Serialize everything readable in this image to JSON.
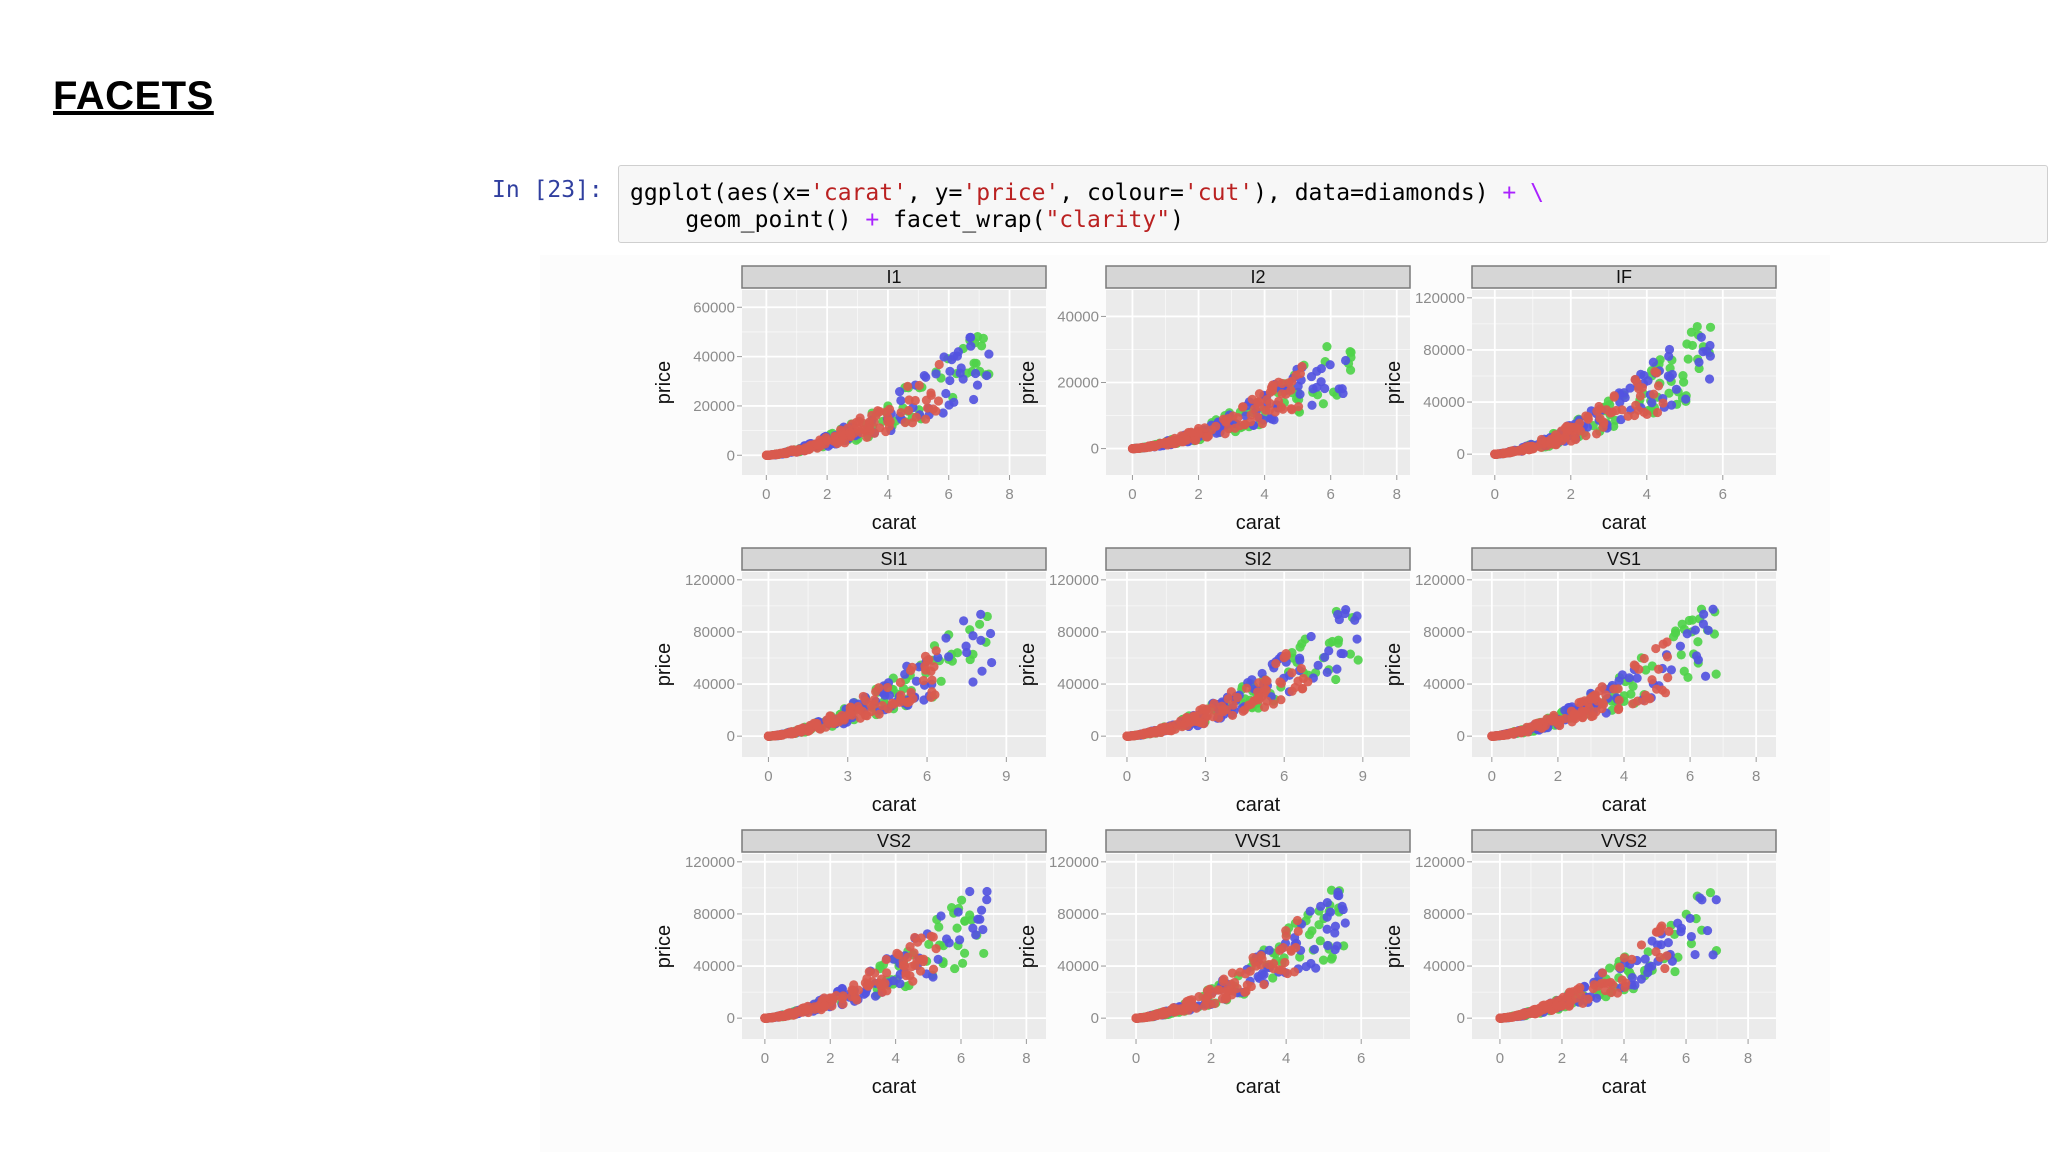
{
  "slide": {
    "title": "FACETS"
  },
  "cell": {
    "prompt": "In [23]:",
    "code_lines": [
      [
        {
          "t": "ggplot(aes(x=",
          "c": "plain"
        },
        {
          "t": "'carat'",
          "c": "str"
        },
        {
          "t": ", y=",
          "c": "plain"
        },
        {
          "t": "'price'",
          "c": "str"
        },
        {
          "t": ", colour=",
          "c": "plain"
        },
        {
          "t": "'cut'",
          "c": "str"
        },
        {
          "t": "), data=diamonds) ",
          "c": "plain"
        },
        {
          "t": "+",
          "c": "op"
        },
        {
          "t": " ",
          "c": "plain"
        },
        {
          "t": "\\",
          "c": "op"
        }
      ],
      [
        {
          "t": "    geom_point() ",
          "c": "plain"
        },
        {
          "t": "+",
          "c": "op"
        },
        {
          "t": " facet_wrap(",
          "c": "plain"
        },
        {
          "t": "\"clarity\"",
          "c": "str"
        },
        {
          "t": ")",
          "c": "plain"
        }
      ]
    ]
  },
  "colors": {
    "panel_bg": "#ebebeb",
    "grid": "#ffffff",
    "strip_bg": "#d6d6d6",
    "series": [
      "#4fd34a",
      "#5454e0",
      "#d95a4e"
    ]
  },
  "chart_data": [
    {
      "type": "scatter",
      "title": "I1",
      "xlabel": "carat",
      "ylabel": "price",
      "xticks": [
        0,
        2,
        4,
        6,
        8
      ],
      "yticks": [
        0,
        20000,
        40000,
        60000
      ],
      "xlim": [
        -0.8,
        9.2
      ],
      "ylim": [
        -8000,
        67000
      ]
    },
    {
      "type": "scatter",
      "title": "I2",
      "xlabel": "carat",
      "ylabel": "price",
      "xticks": [
        0,
        2,
        4,
        6,
        8
      ],
      "yticks": [
        0,
        20000,
        40000
      ],
      "xlim": [
        -0.8,
        8.4
      ],
      "ylim": [
        -8000,
        48000
      ]
    },
    {
      "type": "scatter",
      "title": "IF",
      "xlabel": "carat",
      "ylabel": "price",
      "xticks": [
        0,
        2,
        4,
        6
      ],
      "yticks": [
        0,
        40000,
        80000,
        120000
      ],
      "xlim": [
        -0.6,
        7.4
      ],
      "ylim": [
        -16000,
        126000
      ]
    },
    {
      "type": "scatter",
      "title": "SI1",
      "xlabel": "carat",
      "ylabel": "price",
      "xticks": [
        0,
        3,
        6,
        9
      ],
      "yticks": [
        0,
        40000,
        80000,
        120000
      ],
      "xlim": [
        -1.0,
        10.5
      ],
      "ylim": [
        -16000,
        126000
      ]
    },
    {
      "type": "scatter",
      "title": "SI2",
      "xlabel": "carat",
      "ylabel": "price",
      "xticks": [
        0,
        3,
        6,
        9
      ],
      "yticks": [
        0,
        40000,
        80000,
        120000
      ],
      "xlim": [
        -0.8,
        10.8
      ],
      "ylim": [
        -16000,
        126000
      ]
    },
    {
      "type": "scatter",
      "title": "VS1",
      "xlabel": "carat",
      "ylabel": "price",
      "xticks": [
        0,
        2,
        4,
        6,
        8
      ],
      "yticks": [
        0,
        40000,
        80000,
        120000
      ],
      "xlim": [
        -0.6,
        8.6
      ],
      "ylim": [
        -16000,
        126000
      ]
    },
    {
      "type": "scatter",
      "title": "VS2",
      "xlabel": "carat",
      "ylabel": "price",
      "xticks": [
        0,
        2,
        4,
        6,
        8
      ],
      "yticks": [
        0,
        40000,
        80000,
        120000
      ],
      "xlim": [
        -0.7,
        8.6
      ],
      "ylim": [
        -16000,
        126000
      ]
    },
    {
      "type": "scatter",
      "title": "VVS1",
      "xlabel": "carat",
      "ylabel": "price",
      "xticks": [
        0,
        2,
        4,
        6
      ],
      "yticks": [
        0,
        40000,
        80000,
        120000
      ],
      "xlim": [
        -0.8,
        7.3
      ],
      "ylim": [
        -16000,
        126000
      ]
    },
    {
      "type": "scatter",
      "title": "VVS2",
      "xlabel": "carat",
      "ylabel": "price",
      "xticks": [
        0,
        2,
        4,
        6,
        8
      ],
      "yticks": [
        0,
        40000,
        80000,
        120000
      ],
      "xlim": [
        -0.9,
        8.9
      ],
      "ylim": [
        -16000,
        126000
      ]
    }
  ]
}
